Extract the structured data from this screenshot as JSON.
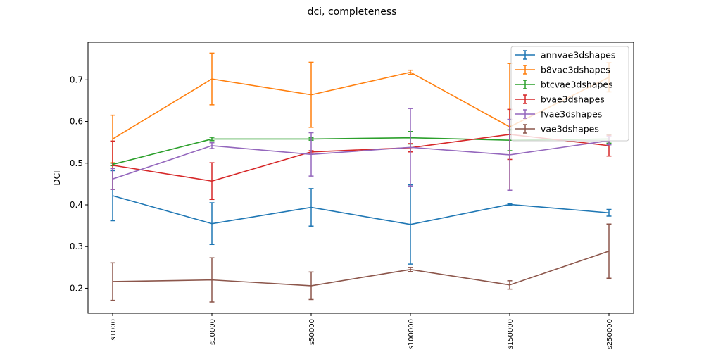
{
  "chart_data": {
    "type": "line",
    "title": "dci, completeness",
    "xlabel": "",
    "ylabel": "DCI",
    "categories": [
      "s1000",
      "s10000",
      "s50000",
      "s100000",
      "s150000",
      "s250000"
    ],
    "ylim": [
      0.14,
      0.79
    ],
    "yticks": [
      0.2,
      0.3,
      0.4,
      0.5,
      0.6,
      0.7
    ],
    "ytick_labels": [
      "0.2",
      "0.3",
      "0.4",
      "0.5",
      "0.6",
      "0.7"
    ],
    "legend_position": "top-right",
    "grid": false,
    "series": [
      {
        "name": "annvae3dshapes",
        "color": "#1f77b4",
        "values": [
          0.422,
          0.355,
          0.394,
          0.353,
          0.401,
          0.381
        ],
        "errors": [
          0.06,
          0.05,
          0.045,
          0.095,
          0.002,
          0.008
        ]
      },
      {
        "name": "b8vae3dshapes",
        "color": "#ff7f0e",
        "values": [
          0.558,
          0.702,
          0.664,
          0.718,
          0.587,
          0.706
        ],
        "errors": [
          0.057,
          0.062,
          0.078,
          0.005,
          0.152,
          0.035
        ]
      },
      {
        "name": "btcvae3dshapes",
        "color": "#2ca02c",
        "values": [
          0.497,
          0.558,
          0.558,
          0.561,
          0.555,
          0.558
        ],
        "errors": [
          0.003,
          0.004,
          0.003,
          0.015,
          0.025,
          0.01
        ]
      },
      {
        "name": "bvae3dshapes",
        "color": "#d62728",
        "values": [
          0.495,
          0.457,
          0.527,
          0.537,
          0.569,
          0.542
        ],
        "errors": [
          0.058,
          0.044,
          0.003,
          0.01,
          0.06,
          0.025
        ]
      },
      {
        "name": "fvae3dshapes",
        "color": "#9467bd",
        "values": [
          0.462,
          0.542,
          0.521,
          0.538,
          0.52,
          0.554
        ],
        "errors": [
          0.025,
          0.007,
          0.052,
          0.093,
          0.085,
          0.01
        ]
      },
      {
        "name": "vae3dshapes",
        "color": "#8c564b",
        "values": [
          0.216,
          0.22,
          0.206,
          0.245,
          0.208,
          0.289
        ],
        "errors": [
          0.045,
          0.053,
          0.033,
          0.005,
          0.01,
          0.065
        ]
      }
    ]
  }
}
